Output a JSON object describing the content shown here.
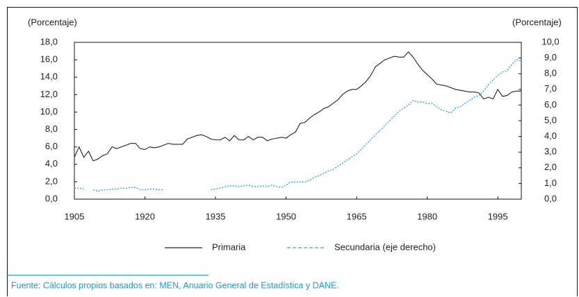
{
  "chart_data": {
    "type": "line",
    "y_label": "(Porcentaje)",
    "y2_label": "(Porcentaje)",
    "source": "Fuente: Cálculos propios basados en: MEN, Anuario General de Estadística y DANE.",
    "x": [
      1905,
      1906,
      1907,
      1908,
      1909,
      1910,
      1911,
      1912,
      1913,
      1914,
      1915,
      1916,
      1917,
      1918,
      1919,
      1920,
      1921,
      1922,
      1923,
      1924,
      1925,
      1926,
      1927,
      1928,
      1929,
      1930,
      1931,
      1932,
      1933,
      1934,
      1935,
      1936,
      1937,
      1938,
      1939,
      1940,
      1941,
      1942,
      1943,
      1944,
      1945,
      1946,
      1947,
      1948,
      1949,
      1950,
      1951,
      1952,
      1953,
      1954,
      1955,
      1956,
      1957,
      1958,
      1959,
      1960,
      1961,
      1962,
      1963,
      1964,
      1965,
      1966,
      1967,
      1968,
      1969,
      1970,
      1971,
      1972,
      1973,
      1974,
      1975,
      1976,
      1977,
      1978,
      1979,
      1980,
      1981,
      1982,
      1983,
      1984,
      1985,
      1986,
      1987,
      1988,
      1989,
      1990,
      1991,
      1992,
      1993,
      1994,
      1995,
      1996,
      1997,
      1998,
      1999,
      2000
    ],
    "series": [
      {
        "name": "Primaria",
        "color": "#222222",
        "dash": false,
        "values": [
          4.8,
          6.0,
          4.8,
          5.5,
          4.4,
          4.6,
          5.0,
          5.2,
          6.0,
          5.8,
          6.0,
          6.2,
          6.4,
          6.4,
          5.8,
          5.7,
          6.0,
          5.9,
          6.0,
          6.2,
          6.4,
          6.3,
          6.3,
          6.3,
          6.9,
          7.1,
          7.3,
          7.4,
          7.2,
          6.9,
          6.8,
          6.8,
          7.1,
          6.7,
          7.3,
          6.8,
          6.8,
          7.2,
          6.8,
          7.1,
          7.1,
          6.7,
          6.9,
          7.0,
          7.1,
          7.0,
          7.4,
          7.7,
          8.7,
          8.8,
          9.3,
          9.7,
          10.0,
          10.4,
          10.6,
          11.0,
          11.4,
          12.0,
          12.4,
          12.6,
          12.6,
          13.0,
          13.5,
          14.2,
          15.2,
          15.6,
          16.0,
          16.2,
          16.4,
          16.3,
          16.3,
          16.9,
          16.3,
          15.5,
          14.8,
          14.3,
          13.8,
          13.2,
          13.1,
          13.0,
          12.8,
          12.6,
          12.5,
          12.4,
          12.3,
          12.3,
          12.2,
          11.5,
          11.7,
          11.5,
          12.6,
          11.8,
          11.9,
          12.3,
          12.4,
          12.4
        ]
      },
      {
        "name": "Secundaria (eje derecho)",
        "color": "#29abe2",
        "dash": true,
        "axis": "y2",
        "values": [
          0.7,
          0.7,
          0.65,
          null,
          0.6,
          0.5,
          0.6,
          0.6,
          0.65,
          0.65,
          0.7,
          0.7,
          0.75,
          0.75,
          0.6,
          0.6,
          0.65,
          0.65,
          0.6,
          0.6,
          null,
          null,
          null,
          null,
          null,
          null,
          null,
          null,
          null,
          0.6,
          0.65,
          0.7,
          0.8,
          0.85,
          0.85,
          0.8,
          0.85,
          0.9,
          0.8,
          0.8,
          0.85,
          0.8,
          0.9,
          0.8,
          0.75,
          0.9,
          1.1,
          1.1,
          1.1,
          1.1,
          1.2,
          1.4,
          1.5,
          1.65,
          1.8,
          1.9,
          2.1,
          2.3,
          2.5,
          2.7,
          2.9,
          3.2,
          3.5,
          3.8,
          4.1,
          4.4,
          4.7,
          5.0,
          5.3,
          5.6,
          5.8,
          6.0,
          6.3,
          6.2,
          6.2,
          6.1,
          6.1,
          5.9,
          5.7,
          5.6,
          5.5,
          5.8,
          5.9,
          6.1,
          6.3,
          6.5,
          6.6,
          6.9,
          7.3,
          7.6,
          7.9,
          8.1,
          8.2,
          8.6,
          8.9,
          8.8
        ]
      }
    ],
    "xlim": [
      1905,
      2000
    ],
    "xticks": [
      1905,
      1920,
      1935,
      1950,
      1965,
      1980,
      1995
    ],
    "ylim": [
      0,
      18
    ],
    "yticks": [
      {
        "value": 0,
        "label": "0,0"
      },
      {
        "value": 2,
        "label": "2,0"
      },
      {
        "value": 4,
        "label": "4,0"
      },
      {
        "value": 6,
        "label": "6,0"
      },
      {
        "value": 8,
        "label": "8,0"
      },
      {
        "value": 10,
        "label": "10,0"
      },
      {
        "value": 12,
        "label": "12,0"
      },
      {
        "value": 14,
        "label": "14,0"
      },
      {
        "value": 16,
        "label": "16,0"
      },
      {
        "value": 18,
        "label": "18,0"
      }
    ],
    "y2lim": [
      0,
      10
    ],
    "y2ticks": [
      {
        "value": 0,
        "label": "0,0"
      },
      {
        "value": 1,
        "label": "1,0"
      },
      {
        "value": 2,
        "label": "2,0"
      },
      {
        "value": 3,
        "label": "3,0"
      },
      {
        "value": 4,
        "label": "4,0"
      },
      {
        "value": 5,
        "label": "5,0"
      },
      {
        "value": 6,
        "label": "6,0"
      },
      {
        "value": 7,
        "label": "7,0"
      },
      {
        "value": 8,
        "label": "8,0"
      },
      {
        "value": 9,
        "label": "9,0"
      },
      {
        "value": 10,
        "label": "10,0"
      }
    ],
    "grid": false
  }
}
